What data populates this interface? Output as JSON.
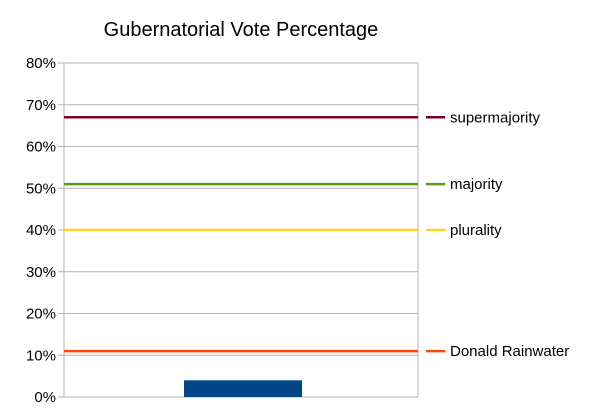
{
  "chart_data": {
    "type": "bar",
    "title": "Gubernatorial Vote Percentage",
    "xlabel": "",
    "ylabel": "",
    "ylim": [
      0,
      80
    ],
    "y_ticks": [
      0,
      10,
      20,
      30,
      40,
      50,
      60,
      70,
      80
    ],
    "y_tick_labels": [
      "0%",
      "10%",
      "20%",
      "30%",
      "40%",
      "50%",
      "60%",
      "70%",
      "80%"
    ],
    "grid": true,
    "legend_position": "right",
    "bars": [
      {
        "name": "",
        "value": 4,
        "color": "#004586"
      }
    ],
    "series": [
      {
        "name": "supermajority",
        "value": 67,
        "color": "#7e0021"
      },
      {
        "name": "majority",
        "value": 51,
        "color": "#579d1c"
      },
      {
        "name": "plurality",
        "value": 40,
        "color": "#ffd320"
      },
      {
        "name": "Donald Rainwater",
        "value": 11,
        "color": "#ff420e"
      }
    ]
  }
}
